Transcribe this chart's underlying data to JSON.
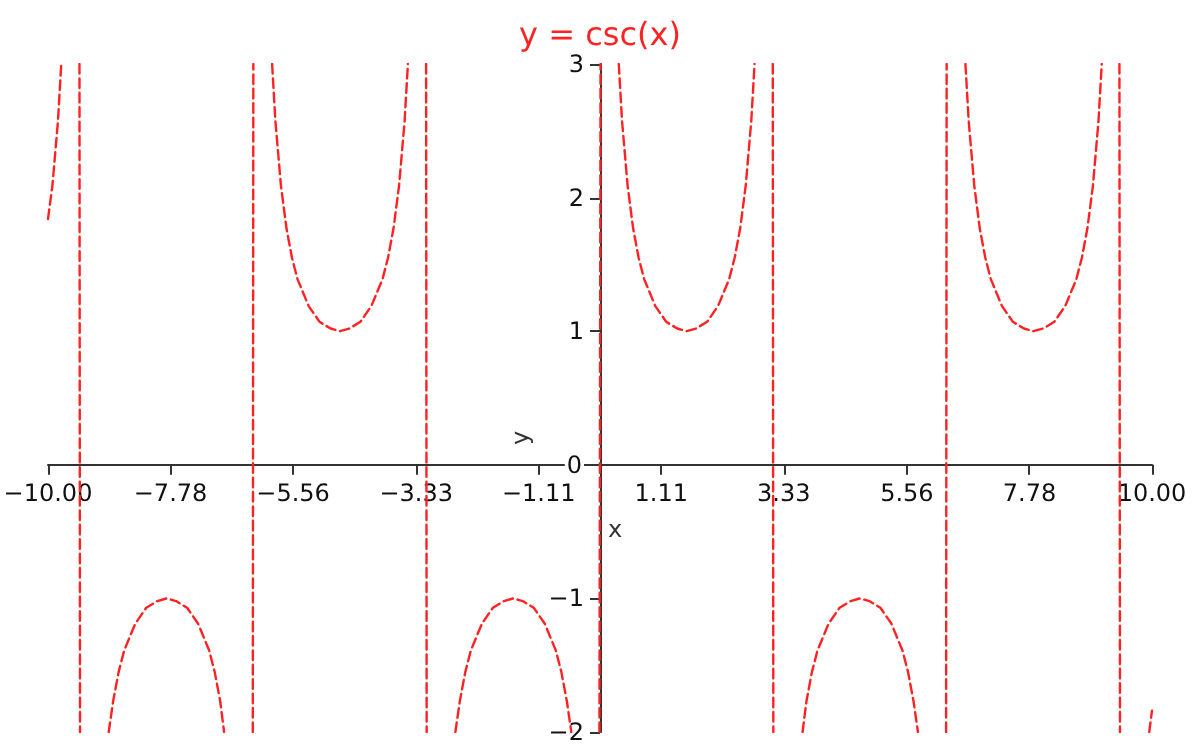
{
  "chart_data": {
    "type": "line",
    "title": "y = csc(x)",
    "xlabel": "x",
    "ylabel": "y",
    "xlim": [
      -10,
      10
    ],
    "ylim": [
      -2,
      3
    ],
    "xticks": [
      {
        "value": -10,
        "label": "−10.00"
      },
      {
        "value": -7.78,
        "label": "−7.78"
      },
      {
        "value": -5.56,
        "label": "−5.56"
      },
      {
        "value": -3.33,
        "label": "−3.33"
      },
      {
        "value": -1.11,
        "label": "−1.11"
      },
      {
        "value": 1.11,
        "label": "1.11"
      },
      {
        "value": 3.33,
        "label": "3.33"
      },
      {
        "value": 5.56,
        "label": "5.56"
      },
      {
        "value": 7.78,
        "label": "7.78"
      },
      {
        "value": 10,
        "label": "10.00"
      }
    ],
    "yticks": [
      {
        "value": -2,
        "label": "−2"
      },
      {
        "value": -1,
        "label": "−1"
      },
      0,
      1,
      2,
      3
    ],
    "grid": false,
    "marker": "none",
    "line_style": "dashed",
    "series": [
      {
        "color": "#ff2222",
        "x": [
          -10,
          -9.92,
          -9.82,
          -9.76,
          -9.6,
          -9.43,
          -9.42,
          -9.2,
          -8.9,
          -8.82,
          -8.72,
          -8.62,
          -8.42,
          -8.22,
          -8.02,
          -7.85,
          -7.68,
          -7.48,
          -7.28,
          -7.08,
          -6.98,
          -6.88,
          -6.81,
          -6.5,
          -6.29,
          -6.28,
          -6.1,
          -5.94,
          -5.88,
          -5.78,
          -5.68,
          -5.58,
          -5.48,
          -5.28,
          -5.08,
          -4.88,
          -4.71,
          -4.54,
          -4.34,
          -4.14,
          -3.94,
          -3.84,
          -3.74,
          -3.64,
          -3.54,
          -3.48,
          -3.3,
          -3.15,
          -3.14,
          -2.9,
          -2.62,
          -2.54,
          -2.44,
          -2.34,
          -2.14,
          -1.94,
          -1.74,
          -1.57,
          -1.4,
          -1.2,
          -1,
          -0.8,
          -0.7,
          -0.6,
          -0.52,
          -0.3,
          -0.01,
          0.01,
          0.2,
          0.34,
          0.4,
          0.5,
          0.6,
          0.7,
          0.8,
          1,
          1.2,
          1.4,
          1.57,
          1.74,
          1.94,
          2.14,
          2.34,
          2.44,
          2.54,
          2.64,
          2.74,
          2.8,
          3,
          3.13,
          3.14,
          3.4,
          3.67,
          3.74,
          3.84,
          3.94,
          4.14,
          4.34,
          4.54,
          4.71,
          4.88,
          5.08,
          5.28,
          5.48,
          5.58,
          5.68,
          5.76,
          6,
          6.27,
          6.28,
          6.5,
          6.62,
          6.68,
          6.78,
          6.88,
          6.98,
          7.08,
          7.28,
          7.48,
          7.68,
          7.85,
          8.03,
          8.23,
          8.43,
          8.63,
          8.73,
          8.83,
          8.93,
          9.03,
          9.09,
          9.3,
          9.41,
          9.42,
          9.7,
          9.95,
          10
        ],
        "values": [
          1.84,
          2.09,
          2.57,
          3,
          null,
          3,
          -2,
          null,
          -2,
          -1.77,
          -1.55,
          -1.39,
          -1.19,
          -1.07,
          -1.02,
          -1,
          -1.02,
          -1.07,
          -1.19,
          -1.39,
          -1.55,
          -1.77,
          -2,
          null,
          -2,
          3,
          null,
          3,
          2.57,
          2.09,
          1.77,
          1.55,
          1.39,
          1.19,
          1.07,
          1.02,
          1,
          1.02,
          1.07,
          1.19,
          1.39,
          1.55,
          1.77,
          2.09,
          2.57,
          3,
          null,
          3,
          -2,
          null,
          -2,
          -1.77,
          -1.55,
          -1.39,
          -1.19,
          -1.07,
          -1.02,
          -1,
          -1.02,
          -1.07,
          -1.19,
          -1.39,
          -1.55,
          -1.77,
          -2,
          null,
          -2,
          3,
          null,
          3,
          2.57,
          2.09,
          1.77,
          1.55,
          1.39,
          1.19,
          1.07,
          1.02,
          1,
          1.02,
          1.07,
          1.19,
          1.39,
          1.55,
          1.77,
          2.09,
          2.57,
          3,
          null,
          3,
          -2,
          null,
          -2,
          -1.77,
          -1.55,
          -1.39,
          -1.19,
          -1.07,
          -1.02,
          -1,
          -1.02,
          -1.07,
          -1.19,
          -1.39,
          -1.55,
          -1.77,
          -2,
          null,
          -2,
          3,
          null,
          3,
          2.57,
          2.09,
          1.77,
          1.55,
          1.39,
          1.19,
          1.07,
          1.02,
          1,
          1.02,
          1.07,
          1.19,
          1.39,
          1.55,
          1.77,
          2.09,
          2.57,
          3,
          null,
          3,
          -2,
          null,
          -2,
          -1.84
        ]
      }
    ]
  }
}
